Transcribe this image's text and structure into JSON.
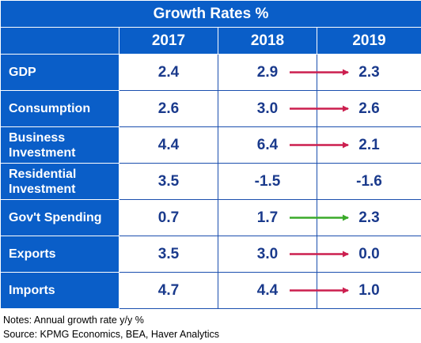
{
  "chart_data": {
    "type": "table",
    "title": "Growth Rates %",
    "columns": [
      "2017",
      "2018",
      "2019"
    ],
    "rows": [
      {
        "label": "GDP",
        "values": [
          "2.4",
          "2.9",
          "2.3"
        ],
        "arrow": "down"
      },
      {
        "label": "Consumption",
        "values": [
          "2.6",
          "3.0",
          "2.6"
        ],
        "arrow": "down"
      },
      {
        "label": "Business Investment",
        "values": [
          "4.4",
          "6.4",
          "2.1"
        ],
        "arrow": "down"
      },
      {
        "label": "Residential Investment",
        "values": [
          "3.5",
          "-1.5",
          "-1.6"
        ],
        "arrow": "none"
      },
      {
        "label": "Gov't Spending",
        "values": [
          "0.7",
          "1.7",
          "2.3"
        ],
        "arrow": "up"
      },
      {
        "label": "Exports",
        "values": [
          "3.5",
          "3.0",
          "0.0"
        ],
        "arrow": "down"
      },
      {
        "label": "Imports",
        "values": [
          "4.7",
          "4.4",
          "1.0"
        ],
        "arrow": "down"
      }
    ],
    "colors": {
      "header": "#0a5ec8",
      "value_text": "#1a3a8c",
      "arrow_down": "#cc1f4f",
      "arrow_up": "#3aaa2a"
    }
  },
  "notes": {
    "line1": "Notes: Annual growth rate y/y %",
    "line2": "Source: KPMG Economics, BEA, Haver Analytics"
  }
}
